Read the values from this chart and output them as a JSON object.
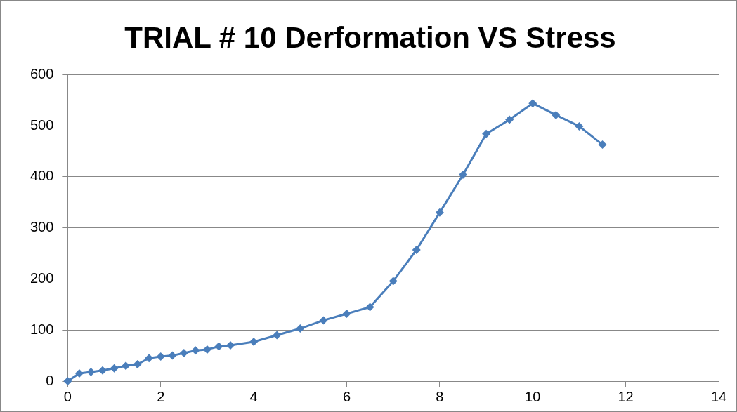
{
  "chart_data": {
    "type": "line",
    "title": "TRIAL # 10 Derformation VS Stress",
    "x": [
      0,
      0.25,
      0.5,
      0.75,
      1,
      1.25,
      1.5,
      1.75,
      2,
      2.25,
      2.5,
      2.75,
      3,
      3.25,
      3.5,
      4,
      4.5,
      5,
      5.5,
      6,
      6.5,
      7,
      7.5,
      8,
      8.5,
      9,
      9.5,
      10,
      10.5,
      11,
      11.5
    ],
    "series": [
      {
        "color": "#4a7ebb",
        "values": [
          0,
          15,
          18,
          21,
          25,
          30,
          33,
          45,
          48,
          50,
          55,
          60,
          62,
          68,
          70,
          77,
          90,
          103,
          119,
          132,
          145,
          196,
          257,
          330,
          404,
          484,
          512,
          544,
          521,
          499,
          463
        ]
      }
    ],
    "xlim": [
      0,
      14
    ],
    "xticks": [
      0,
      2,
      4,
      6,
      8,
      10,
      12,
      14
    ],
    "ylim": [
      0,
      600
    ],
    "yticks": [
      0,
      100,
      200,
      300,
      400,
      500,
      600
    ],
    "grid": "y",
    "legend": false,
    "marker": "diamond",
    "line_style": "solid"
  }
}
